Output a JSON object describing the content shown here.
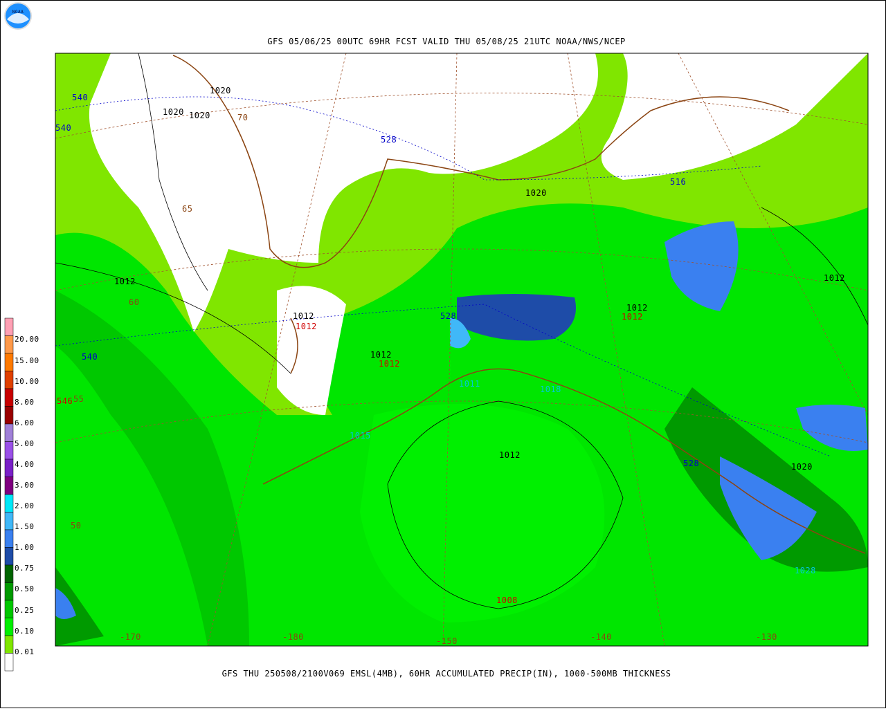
{
  "header": {
    "title": "GFS 05/06/25 00UTC 69HR FCST VALID THU 05/08/25 21UTC NOAA/NWS/NCEP",
    "logo": "NOAA"
  },
  "footer": {
    "caption": "GFS THU 250508/2100V069 EMSL(4MB), 60HR ACCUMULATED PRECIP(IN), 1000-500MB THICKNESS"
  },
  "legend": {
    "labels": [
      "20.00",
      "15.00",
      "10.00",
      "8.00",
      "6.00",
      "5.00",
      "4.00",
      "3.00",
      "2.00",
      "1.50",
      "1.00",
      "0.75",
      "0.50",
      "0.25",
      "0.10",
      "0.01"
    ],
    "swatch_colors": [
      "#ffa0b4",
      "#ff9a4a",
      "#ff7a00",
      "#e04000",
      "#c80000",
      "#9a0000",
      "#a080d8",
      "#9a50e8",
      "#7a20c8",
      "#800080",
      "#00e8f8",
      "#40b8f8",
      "#3a80f0",
      "#1e4ca8",
      "#006400",
      "#009a00",
      "#00c800",
      "#00f000",
      "#80e600",
      "#ffffff"
    ]
  },
  "map": {
    "labels": [
      {
        "text": "540",
        "color": "#0000c8"
      },
      {
        "text": "540",
        "color": "#0000c8"
      },
      {
        "text": "1020",
        "color": "#000000"
      },
      {
        "text": "1020",
        "color": "#000000"
      },
      {
        "text": "1020",
        "color": "#000000"
      },
      {
        "text": "70",
        "color": "#8b4513"
      },
      {
        "text": "528",
        "color": "#0000c8"
      },
      {
        "text": "1020",
        "color": "#000000"
      },
      {
        "text": "516",
        "color": "#0000c8"
      },
      {
        "text": "65",
        "color": "#8b4513"
      },
      {
        "text": "1012",
        "color": "#000000"
      },
      {
        "text": "60",
        "color": "#8b4513"
      },
      {
        "text": "1012",
        "color": "#000000"
      },
      {
        "text": "1012",
        "color": "#000000"
      },
      {
        "text": "1012",
        "color": "#d00000"
      },
      {
        "text": "1012",
        "color": "#000000"
      },
      {
        "text": "1012",
        "color": "#d00000"
      },
      {
        "text": "528",
        "color": "#0000c8"
      },
      {
        "text": "1012",
        "color": "#000000"
      },
      {
        "text": "1012",
        "color": "#d00000"
      },
      {
        "text": "540",
        "color": "#0000c8"
      },
      {
        "text": "546",
        "color": "#d00000"
      },
      {
        "text": "55",
        "color": "#8b4513"
      },
      {
        "text": "1011",
        "color": "#00c8d8"
      },
      {
        "text": "1018",
        "color": "#00c8d8"
      },
      {
        "text": "1015",
        "color": "#00c8d8"
      },
      {
        "text": "1012",
        "color": "#000000"
      },
      {
        "text": "528",
        "color": "#0000c8"
      },
      {
        "text": "1020",
        "color": "#000000"
      },
      {
        "text": "50",
        "color": "#8b4513"
      },
      {
        "text": "1008",
        "color": "#d00000"
      },
      {
        "text": "1028",
        "color": "#00c8d8"
      },
      {
        "text": "-170",
        "color": "#8b4513"
      },
      {
        "text": "-180",
        "color": "#8b4513"
      },
      {
        "text": "-150",
        "color": "#8b4513"
      },
      {
        "text": "-140",
        "color": "#8b4513"
      },
      {
        "text": "-130",
        "color": "#8b4513"
      }
    ]
  }
}
